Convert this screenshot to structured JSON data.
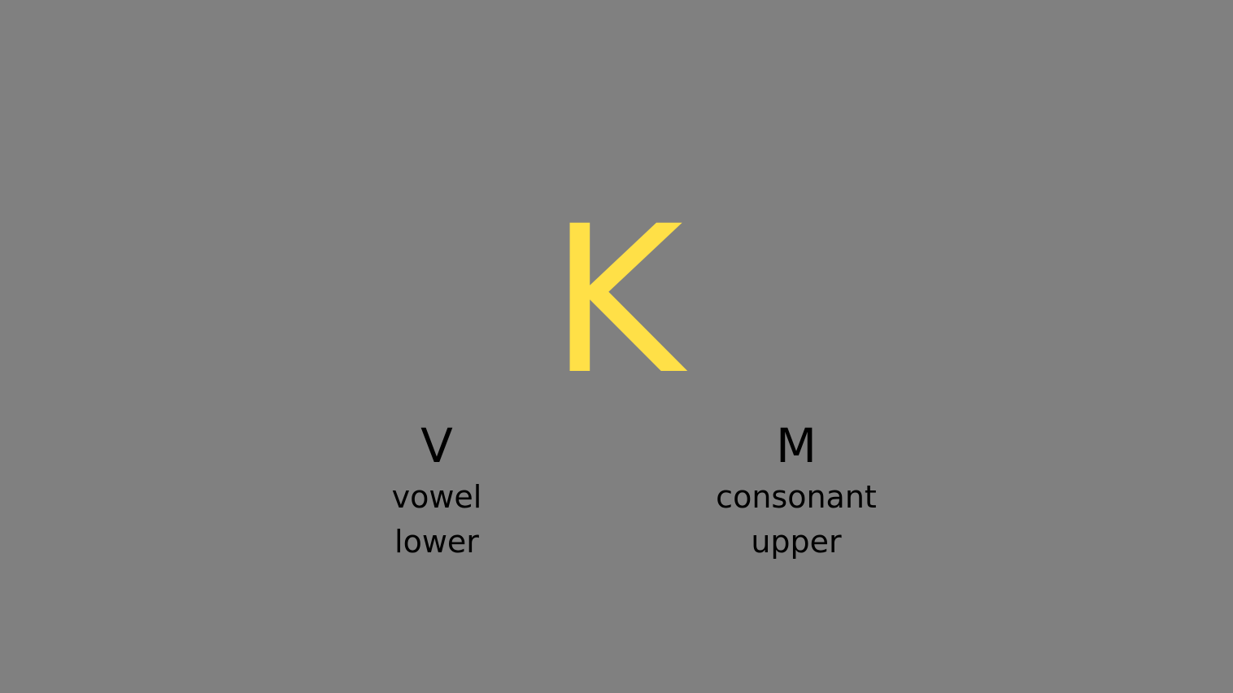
{
  "stimulus": {
    "letter": "K",
    "color": "#FFE047"
  },
  "background_color": "#808080",
  "left_option": {
    "key": "V",
    "line1": "vowel",
    "line2": "lower"
  },
  "right_option": {
    "key": "M",
    "line1": "consonant",
    "line2": "upper"
  }
}
